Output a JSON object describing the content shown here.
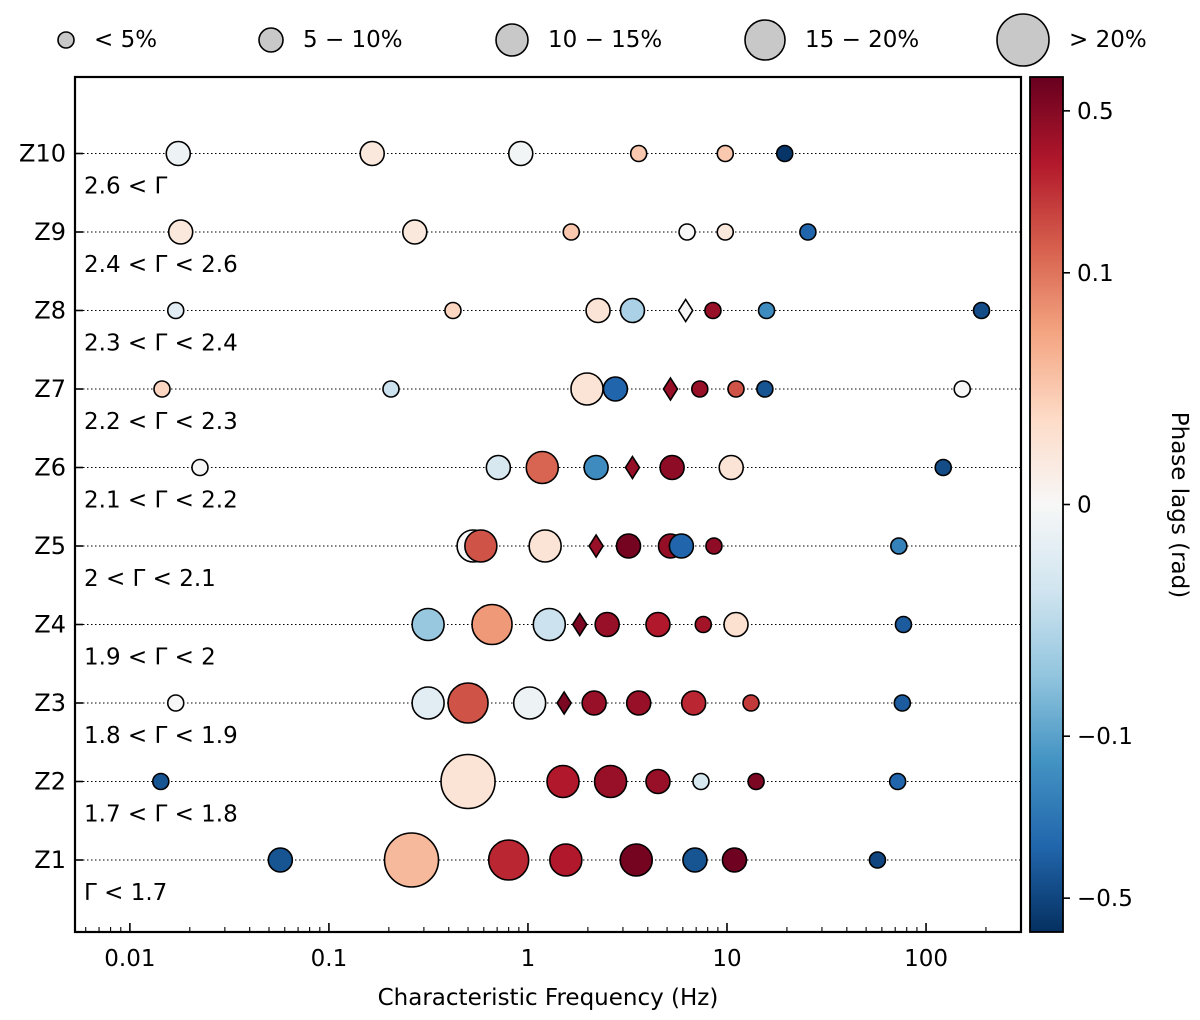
{
  "chart_data": {
    "type": "scatter",
    "xlabel": "Characteristic Frequency (Hz)",
    "xscale": "log",
    "xlim": [
      0.0053,
      300
    ],
    "x_ticks": [
      {
        "value": 0.01,
        "label": "0.01"
      },
      {
        "value": 0.1,
        "label": "0.1"
      },
      {
        "value": 1,
        "label": "1"
      },
      {
        "value": 10,
        "label": "10"
      },
      {
        "value": 100,
        "label": "100"
      }
    ],
    "colorbar": {
      "label": "Phase lags (rad)",
      "colormap": "RdBu_r",
      "scale": "symlog",
      "vmin": -0.7,
      "vmax": 0.7,
      "ticks": [
        {
          "value": 0.5,
          "label": "0.5"
        },
        {
          "value": 0.1,
          "label": "0.1"
        },
        {
          "value": 0,
          "label": "0"
        },
        {
          "value": -0.1,
          "label": "−0.1"
        },
        {
          "value": -0.5,
          "label": "−0.5"
        }
      ]
    },
    "size_legend": [
      {
        "label": "< 5%",
        "size_class": 1
      },
      {
        "label": "5 − 10%",
        "size_class": 2
      },
      {
        "label": "10 − 15%",
        "size_class": 3
      },
      {
        "label": "15 − 20%",
        "size_class": 4
      },
      {
        "label": "> 20%",
        "size_class": 5
      }
    ],
    "rows": [
      {
        "name": "Z10",
        "annotation": "2.6 < Γ",
        "points": [
          {
            "freq": 0.0175,
            "lag": -0.01,
            "size_class": 2
          },
          {
            "freq": 0.165,
            "lag": 0.02,
            "size_class": 2
          },
          {
            "freq": 0.92,
            "lag": -0.005,
            "size_class": 2
          },
          {
            "freq": 3.6,
            "lag": 0.05,
            "size_class": 1
          },
          {
            "freq": 9.8,
            "lag": 0.05,
            "size_class": 1
          },
          {
            "freq": 19.5,
            "lag": -0.65,
            "size_class": 1
          }
        ]
      },
      {
        "name": "Z9",
        "annotation": "2.4 < Γ < 2.6",
        "points": [
          {
            "freq": 0.018,
            "lag": 0.02,
            "size_class": 2
          },
          {
            "freq": 0.27,
            "lag": 0.02,
            "size_class": 2
          },
          {
            "freq": 1.65,
            "lag": 0.05,
            "size_class": 1
          },
          {
            "freq": 6.3,
            "lag": 0.0,
            "size_class": 1
          },
          {
            "freq": 9.8,
            "lag": 0.02,
            "size_class": 1
          },
          {
            "freq": 25.5,
            "lag": -0.3,
            "size_class": 1
          }
        ]
      },
      {
        "name": "Z8",
        "annotation": "2.3 < Γ < 2.4",
        "points": [
          {
            "freq": 0.017,
            "lag": -0.02,
            "size_class": 1
          },
          {
            "freq": 0.42,
            "lag": 0.04,
            "size_class": 1
          },
          {
            "freq": 2.25,
            "lag": 0.025,
            "size_class": 2
          },
          {
            "freq": 3.35,
            "lag": -0.06,
            "size_class": 2
          },
          {
            "freq": 6.2,
            "lag": 0.0,
            "size_class": 1,
            "shape": "diamond"
          },
          {
            "freq": 8.5,
            "lag": 0.4,
            "size_class": 1
          },
          {
            "freq": 15.8,
            "lag": -0.15,
            "size_class": 1
          },
          {
            "freq": 190,
            "lag": -0.45,
            "size_class": 1
          }
        ]
      },
      {
        "name": "Z7",
        "annotation": "2.2 < Γ < 2.3",
        "points": [
          {
            "freq": 0.0145,
            "lag": 0.04,
            "size_class": 1
          },
          {
            "freq": 0.205,
            "lag": -0.04,
            "size_class": 1
          },
          {
            "freq": 1.98,
            "lag": 0.025,
            "size_class": 3
          },
          {
            "freq": 2.75,
            "lag": -0.3,
            "size_class": 2
          },
          {
            "freq": 5.2,
            "lag": 0.4,
            "size_class": 1,
            "shape": "diamond"
          },
          {
            "freq": 7.3,
            "lag": 0.4,
            "size_class": 1
          },
          {
            "freq": 11.1,
            "lag": 0.15,
            "size_class": 1
          },
          {
            "freq": 15.5,
            "lag": -0.4,
            "size_class": 1
          },
          {
            "freq": 152,
            "lag": 0.0,
            "size_class": 1
          }
        ]
      },
      {
        "name": "Z6",
        "annotation": "2.1 < Γ < 2.2",
        "points": [
          {
            "freq": 0.0225,
            "lag": 0.0,
            "size_class": 1
          },
          {
            "freq": 0.71,
            "lag": -0.03,
            "size_class": 2
          },
          {
            "freq": 1.18,
            "lag": 0.12,
            "size_class": 3
          },
          {
            "freq": 2.2,
            "lag": -0.15,
            "size_class": 2
          },
          {
            "freq": 3.35,
            "lag": 0.42,
            "size_class": 1,
            "shape": "diamond"
          },
          {
            "freq": 5.3,
            "lag": 0.45,
            "size_class": 2
          },
          {
            "freq": 10.5,
            "lag": 0.025,
            "size_class": 2
          },
          {
            "freq": 122,
            "lag": -0.45,
            "size_class": 1
          }
        ]
      },
      {
        "name": "Z5",
        "annotation": "2 < Γ < 2.1",
        "points": [
          {
            "freq": 0.53,
            "lag": 0.0,
            "size_class": 3
          },
          {
            "freq": 0.58,
            "lag": 0.15,
            "size_class": 3
          },
          {
            "freq": 1.22,
            "lag": 0.025,
            "size_class": 3
          },
          {
            "freq": 2.2,
            "lag": 0.4,
            "size_class": 1,
            "shape": "diamond"
          },
          {
            "freq": 3.2,
            "lag": 0.6,
            "size_class": 2
          },
          {
            "freq": 5.2,
            "lag": 0.42,
            "size_class": 2
          },
          {
            "freq": 5.9,
            "lag": -0.3,
            "size_class": 2
          },
          {
            "freq": 8.6,
            "lag": 0.45,
            "size_class": 1
          },
          {
            "freq": 73,
            "lag": -0.18,
            "size_class": 1
          }
        ]
      },
      {
        "name": "Z4",
        "annotation": "1.9 < Γ < 2",
        "points": [
          {
            "freq": 0.315,
            "lag": -0.07,
            "size_class": 3
          },
          {
            "freq": 0.66,
            "lag": 0.08,
            "size_class": 4
          },
          {
            "freq": 1.28,
            "lag": -0.04,
            "size_class": 3
          },
          {
            "freq": 1.82,
            "lag": 0.55,
            "size_class": 1,
            "shape": "diamond"
          },
          {
            "freq": 2.5,
            "lag": 0.4,
            "size_class": 2
          },
          {
            "freq": 4.5,
            "lag": 0.3,
            "size_class": 2
          },
          {
            "freq": 7.6,
            "lag": 0.35,
            "size_class": 1
          },
          {
            "freq": 11.1,
            "lag": 0.03,
            "size_class": 2
          },
          {
            "freq": 77,
            "lag": -0.35,
            "size_class": 1
          }
        ]
      },
      {
        "name": "Z3",
        "annotation": "1.8 < Γ < 1.9",
        "points": [
          {
            "freq": 0.017,
            "lag": 0.0,
            "size_class": 1
          },
          {
            "freq": 0.315,
            "lag": -0.02,
            "size_class": 3
          },
          {
            "freq": 0.5,
            "lag": 0.15,
            "size_class": 4
          },
          {
            "freq": 1.02,
            "lag": -0.01,
            "size_class": 3
          },
          {
            "freq": 1.52,
            "lag": 0.55,
            "size_class": 1,
            "shape": "diamond"
          },
          {
            "freq": 2.15,
            "lag": 0.4,
            "size_class": 2
          },
          {
            "freq": 3.6,
            "lag": 0.4,
            "size_class": 2
          },
          {
            "freq": 6.8,
            "lag": 0.25,
            "size_class": 2
          },
          {
            "freq": 13.2,
            "lag": 0.2,
            "size_class": 1
          },
          {
            "freq": 76,
            "lag": -0.35,
            "size_class": 1
          }
        ]
      },
      {
        "name": "Z2",
        "annotation": "1.7 < Γ < 1.8",
        "points": [
          {
            "freq": 0.0143,
            "lag": -0.4,
            "size_class": 1
          },
          {
            "freq": 0.5,
            "lag": 0.025,
            "size_class": 5
          },
          {
            "freq": 1.5,
            "lag": 0.3,
            "size_class": 3
          },
          {
            "freq": 2.6,
            "lag": 0.4,
            "size_class": 3
          },
          {
            "freq": 4.5,
            "lag": 0.4,
            "size_class": 2
          },
          {
            "freq": 7.4,
            "lag": -0.03,
            "size_class": 1
          },
          {
            "freq": 14,
            "lag": 0.55,
            "size_class": 1
          },
          {
            "freq": 72,
            "lag": -0.3,
            "size_class": 1
          }
        ]
      },
      {
        "name": "Z1",
        "annotation": "Γ < 1.7",
        "points": [
          {
            "freq": 0.057,
            "lag": -0.4,
            "size_class": 2
          },
          {
            "freq": 0.26,
            "lag": 0.06,
            "size_class": 5
          },
          {
            "freq": 0.8,
            "lag": 0.25,
            "size_class": 4
          },
          {
            "freq": 1.55,
            "lag": 0.3,
            "size_class": 3
          },
          {
            "freq": 3.5,
            "lag": 0.6,
            "size_class": 3
          },
          {
            "freq": 6.9,
            "lag": -0.4,
            "size_class": 2
          },
          {
            "freq": 10.9,
            "lag": 0.65,
            "size_class": 2
          },
          {
            "freq": 57,
            "lag": -0.5,
            "size_class": 1
          }
        ]
      }
    ]
  }
}
